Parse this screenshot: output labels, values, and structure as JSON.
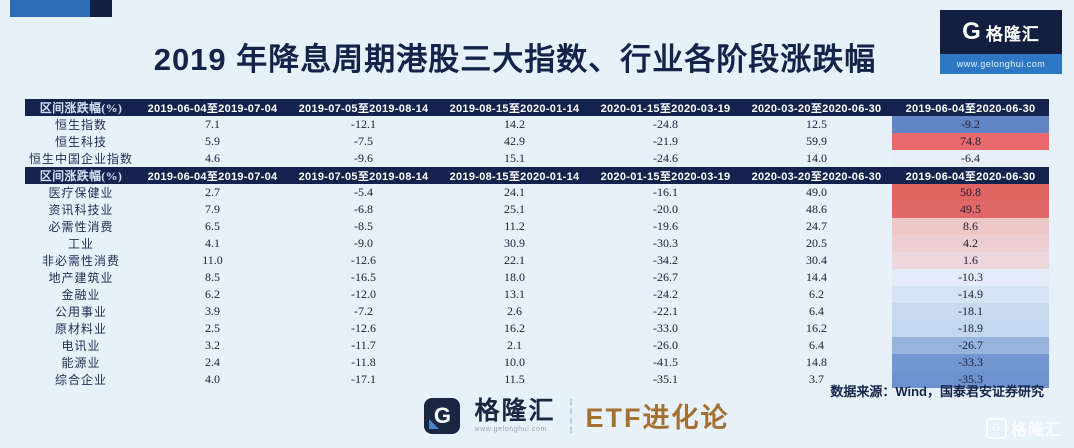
{
  "page": {
    "title": "2019 年降息周期港股三大指数、行业各阶段涨跌幅",
    "background": "#e7f1fa",
    "accent_navy": "#13234d",
    "accent_blue": "#2e6db5"
  },
  "header_logo": {
    "g_letter": "G",
    "name": "格隆汇",
    "url": "www.gelonghui.com"
  },
  "chart_data": {
    "type": "table",
    "title": "2019 年降息周期港股三大指数、行业各阶段涨跌幅",
    "corner_label": "区间涨跌幅(%)",
    "columns": [
      "2019-06-04至2019-07-04",
      "2019-07-05至2019-08-14",
      "2019-08-15至2020-01-14",
      "2020-01-15至2020-03-19",
      "2020-03-20至2020-06-30",
      "2019-06-04至2020-06-30"
    ],
    "color_scale": {
      "positive_max": "#df6462",
      "negative_max": "#6286c5",
      "neutral": "#e7f1fa"
    },
    "sections": [
      {
        "name": "indices",
        "rows": [
          {
            "label": "恒生指数",
            "values": [
              "7.1",
              "-12.1",
              "14.2",
              "-24.8",
              "12.5",
              "-9.2"
            ],
            "total_bg": "#6286c5"
          },
          {
            "label": "恒生科技",
            "values": [
              "5.9",
              "-7.5",
              "42.9",
              "-21.9",
              "59.9",
              "74.8"
            ],
            "total_bg": "#e9696d"
          },
          {
            "label": "恒生中国企业指数",
            "values": [
              "4.6",
              "-9.6",
              "15.1",
              "-24.6",
              "14.0",
              "-6.4"
            ],
            "total_bg": "#e6eff9"
          }
        ]
      },
      {
        "name": "sectors",
        "rows": [
          {
            "label": "医疗保健业",
            "values": [
              "2.7",
              "-5.4",
              "24.1",
              "-16.1",
              "49.0",
              "50.8"
            ],
            "total_bg": "#df6462"
          },
          {
            "label": "资讯科技业",
            "values": [
              "7.9",
              "-6.8",
              "25.1",
              "-20.0",
              "48.6",
              "49.5"
            ],
            "total_bg": "#e06967"
          },
          {
            "label": "必需性消费",
            "values": [
              "6.5",
              "-8.5",
              "11.2",
              "-19.6",
              "24.7",
              "8.6"
            ],
            "total_bg": "#eec7c7"
          },
          {
            "label": "工业",
            "values": [
              "4.1",
              "-9.0",
              "30.9",
              "-30.3",
              "20.5",
              "4.2"
            ],
            "total_bg": "#edced2"
          },
          {
            "label": "非必需性消费",
            "values": [
              "11.0",
              "-12.6",
              "22.1",
              "-34.2",
              "30.4",
              "1.6"
            ],
            "total_bg": "#ecd7dd"
          },
          {
            "label": "地产建筑业",
            "values": [
              "8.5",
              "-16.5",
              "18.0",
              "-26.7",
              "14.4",
              "-10.3"
            ],
            "total_bg": "#e3ecf8"
          },
          {
            "label": "金融业",
            "values": [
              "6.2",
              "-12.0",
              "13.1",
              "-24.2",
              "6.2",
              "-14.9"
            ],
            "total_bg": "#d6e3f3"
          },
          {
            "label": "公用事业",
            "values": [
              "3.9",
              "-7.2",
              "2.6",
              "-22.1",
              "6.4",
              "-18.1"
            ],
            "total_bg": "#c7daf0"
          },
          {
            "label": "原材料业",
            "values": [
              "2.5",
              "-12.6",
              "16.2",
              "-33.0",
              "16.2",
              "-18.9"
            ],
            "total_bg": "#c3d7ee"
          },
          {
            "label": "电讯业",
            "values": [
              "3.2",
              "-11.7",
              "2.1",
              "-26.0",
              "6.4",
              "-26.7"
            ],
            "total_bg": "#97b4de"
          },
          {
            "label": "能源业",
            "values": [
              "2.4",
              "-11.8",
              "10.0",
              "-41.5",
              "14.8",
              "-33.3"
            ],
            "total_bg": "#7296d0"
          },
          {
            "label": "综合企业",
            "values": [
              "4.0",
              "-17.1",
              "11.5",
              "-35.1",
              "3.7",
              "-35.3"
            ],
            "total_bg": "#6d92cd"
          }
        ]
      }
    ]
  },
  "source_note": "数据来源：Wind，国泰君安证券研究",
  "footer": {
    "g_letter": "G",
    "brand": "格隆汇",
    "brand_url": "www.gelonghui.com",
    "channel": "ETF进化论"
  },
  "watermark": {
    "g_letter": "G",
    "text": "格隆汇"
  }
}
